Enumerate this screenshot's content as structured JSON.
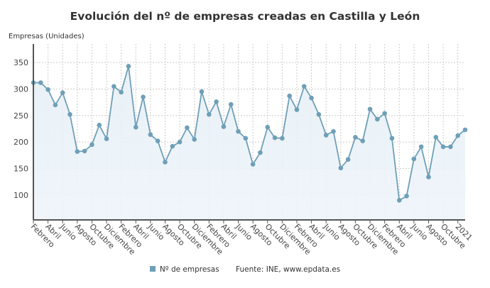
{
  "chart_data": {
    "type": "line",
    "title": "Evolución del nº de empresas creadas en Castilla y León",
    "ylabel": "Empresas (Unidades)",
    "xlabel": "",
    "ylim": [
      53,
      385
    ],
    "yticks": [
      100,
      150,
      200,
      250,
      300,
      350
    ],
    "grid": true,
    "legend_position": "bottom",
    "x_tick_labels": [
      "Febrero",
      "Abril",
      "Junio",
      "Agosto",
      "Octubre",
      "Diciembre",
      "Febrero",
      "Abril",
      "Junio",
      "Agosto",
      "Octubre",
      "Diciembre",
      "Febrero",
      "Abril",
      "Junio",
      "Agosto",
      "Octubre",
      "Diciembre",
      "Febrero",
      "Abril",
      "Junio",
      "Agosto",
      "Octubre",
      "Diciembre",
      "Febrero",
      "Abril",
      "Junio",
      "Agosto",
      "Octubre",
      "2021"
    ],
    "series": [
      {
        "name": "Nº de empresas",
        "color": "#6f9fb8",
        "values": [
          312,
          312,
          299,
          270,
          293,
          252,
          182,
          183,
          195,
          232,
          206,
          305,
          294,
          343,
          228,
          285,
          214,
          202,
          162,
          192,
          200,
          227,
          205,
          295,
          252,
          276,
          229,
          271,
          220,
          207,
          158,
          180,
          228,
          208,
          207,
          287,
          261,
          305,
          283,
          252,
          213,
          220,
          151,
          167,
          209,
          202,
          262,
          243,
          254,
          207,
          90,
          98,
          168,
          191,
          134,
          209,
          191,
          191,
          212,
          223
        ]
      }
    ],
    "source": "Fuente: INE, www.epdata.es"
  }
}
